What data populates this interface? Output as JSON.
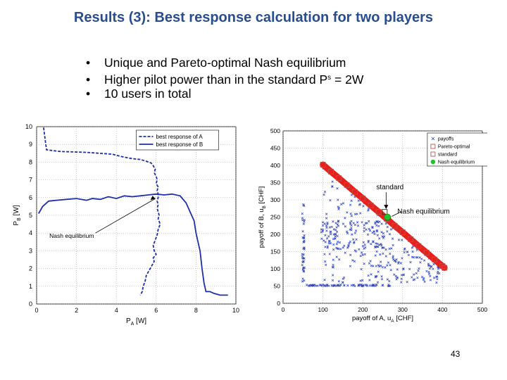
{
  "slide": {
    "title": "Results (3): Best response calculation for two players",
    "bullets": [
      {
        "text": "Unique and Pareto-optimal Nash equilibrium",
        "symbol": "",
        "sup": "",
        "suffix": ""
      },
      {
        "text": "Higher pilot power than in the standard P",
        "symbol": "",
        "sup": "s",
        "suffix": " = 2W"
      },
      {
        "text": "10 users in total",
        "symbol": "",
        "sup": "",
        "suffix": ""
      }
    ],
    "bullet_symbol": "•",
    "page_number": "43"
  },
  "chart_data": [
    {
      "type": "line",
      "xlabel_main": "P",
      "xlabel_sub": "A",
      "xlabel_unit": " [W]",
      "ylabel_main": "P",
      "ylabel_sub": "B",
      "ylabel_unit": " [W]",
      "xlim": [
        0,
        10
      ],
      "ylim": [
        0,
        10
      ],
      "xticks": [
        0,
        2,
        4,
        6,
        8,
        10
      ],
      "yticks": [
        0,
        1,
        2,
        3,
        4,
        5,
        6,
        7,
        8,
        9,
        10
      ],
      "grid": true,
      "legend_position": "top-right",
      "annotation": {
        "text": "Nash equilibrium",
        "points_to": [
          6.1,
          6.1
        ]
      },
      "series": [
        {
          "name": "best response of A",
          "style": "dashed",
          "color": "#1f2fa8",
          "points": [
            [
              0.35,
              9.95
            ],
            [
              0.45,
              9.1
            ],
            [
              0.5,
              8.7
            ],
            [
              0.8,
              8.65
            ],
            [
              1.2,
              8.6
            ],
            [
              2.5,
              8.55
            ],
            [
              3.8,
              8.45
            ],
            [
              4.3,
              8.3
            ],
            [
              4.8,
              8.2
            ],
            [
              5.2,
              8.15
            ],
            [
              5.5,
              8.05
            ],
            [
              5.75,
              7.95
            ],
            [
              5.85,
              7.8
            ],
            [
              5.95,
              7.6
            ],
            [
              5.9,
              7.4
            ],
            [
              6.0,
              7.2
            ],
            [
              6.05,
              7.0
            ],
            [
              6.0,
              6.8
            ],
            [
              6.1,
              6.6
            ],
            [
              6.05,
              6.4
            ],
            [
              6.1,
              6.2
            ],
            [
              6.1,
              6.0
            ],
            [
              6.05,
              5.8
            ],
            [
              6.1,
              5.6
            ],
            [
              6.05,
              5.4
            ],
            [
              6.1,
              5.2
            ],
            [
              6.15,
              5.0
            ],
            [
              6.1,
              4.8
            ],
            [
              6.2,
              4.5
            ],
            [
              6.1,
              4.2
            ],
            [
              6.05,
              3.9
            ],
            [
              5.95,
              3.6
            ],
            [
              5.85,
              3.3
            ],
            [
              5.9,
              3.0
            ],
            [
              6.0,
              2.8
            ],
            [
              5.85,
              2.6
            ],
            [
              5.9,
              2.4
            ],
            [
              5.8,
              2.2
            ],
            [
              5.7,
              2.0
            ],
            [
              5.6,
              1.8
            ],
            [
              5.5,
              1.6
            ],
            [
              5.45,
              1.3
            ],
            [
              5.35,
              1.0
            ],
            [
              5.3,
              0.7
            ],
            [
              5.2,
              0.5
            ]
          ]
        },
        {
          "name": "best response of B",
          "style": "solid",
          "color": "#1f2fa8",
          "points": [
            [
              0.1,
              5.1
            ],
            [
              0.3,
              5.5
            ],
            [
              0.6,
              5.8
            ],
            [
              1.0,
              5.85
            ],
            [
              1.5,
              5.9
            ],
            [
              2.0,
              5.95
            ],
            [
              2.5,
              5.85
            ],
            [
              2.8,
              5.95
            ],
            [
              3.2,
              5.9
            ],
            [
              3.6,
              6.05
            ],
            [
              4.0,
              5.95
            ],
            [
              4.4,
              6.1
            ],
            [
              4.8,
              6.05
            ],
            [
              5.2,
              6.1
            ],
            [
              5.6,
              6.15
            ],
            [
              6.0,
              6.2
            ],
            [
              6.4,
              6.15
            ],
            [
              6.8,
              6.2
            ],
            [
              7.2,
              6.1
            ],
            [
              7.5,
              5.7
            ],
            [
              7.7,
              5.2
            ],
            [
              7.9,
              4.7
            ],
            [
              8.0,
              4.0
            ],
            [
              8.1,
              3.5
            ],
            [
              8.2,
              3.0
            ],
            [
              8.3,
              2.0
            ],
            [
              8.4,
              1.2
            ],
            [
              8.5,
              0.7
            ],
            [
              8.7,
              0.7
            ],
            [
              8.9,
              0.6
            ],
            [
              9.2,
              0.5
            ],
            [
              9.6,
              0.5
            ]
          ]
        }
      ]
    },
    {
      "type": "scatter",
      "xlabel_main": "payoff of A, u",
      "xlabel_sub": "A",
      "xlabel_unit": " [CHF]",
      "ylabel_main": "payoff of B, u",
      "ylabel_sub": "B",
      "ylabel_unit": " [CHF]",
      "xlim": [
        0,
        500
      ],
      "ylim": [
        0,
        500
      ],
      "xticks": [
        0,
        100,
        200,
        300,
        400,
        500
      ],
      "yticks": [
        0,
        50,
        100,
        150,
        200,
        250,
        300,
        350,
        400,
        450,
        500
      ],
      "grid": true,
      "legend_position": "top-right",
      "annotations": [
        {
          "text": "standard",
          "points_to": [
            255,
            265
          ]
        },
        {
          "text": "Nash equilibrium",
          "points_to": [
            262,
            250
          ]
        }
      ],
      "series": [
        {
          "name": "payoffs",
          "marker": "x",
          "color": "#2b3fc0"
        },
        {
          "name": "Pareto-optimal",
          "marker": "square",
          "color": "#c0504d",
          "points": [
            [
              100,
              402
            ],
            [
              120,
              382
            ],
            [
              140,
              363
            ],
            [
              160,
              343
            ],
            [
              180,
              323
            ],
            [
              200,
              304
            ],
            [
              220,
              284
            ],
            [
              240,
              265
            ],
            [
              260,
              245
            ],
            [
              280,
              225
            ],
            [
              300,
              206
            ],
            [
              320,
              186
            ],
            [
              340,
              166
            ],
            [
              360,
              147
            ],
            [
              380,
              127
            ],
            [
              400,
              108
            ],
            [
              405,
              103
            ]
          ]
        },
        {
          "name": "standard",
          "marker": "square",
          "color": "#c0504d",
          "points": [
            [
              255,
              265
            ]
          ]
        },
        {
          "name": "Nash equilibrium",
          "marker": "circle",
          "color": "#22c22a",
          "points": [
            [
              262,
              250
            ]
          ]
        }
      ]
    }
  ]
}
